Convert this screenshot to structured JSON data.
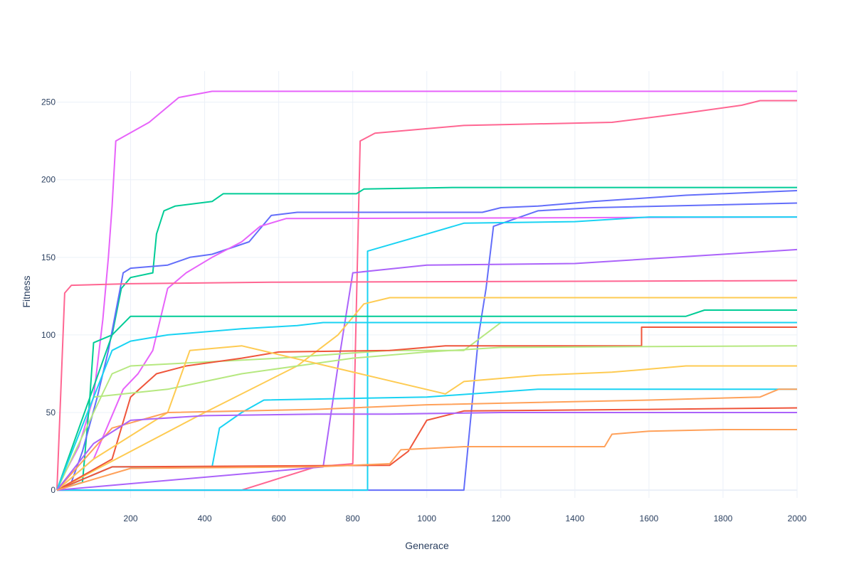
{
  "chart_data": {
    "type": "line",
    "title": "",
    "xlabel": "Generace",
    "ylabel": "Fitness",
    "xlim": [
      1,
      2000
    ],
    "ylim": [
      -5,
      270
    ],
    "xticks": [
      200,
      400,
      600,
      800,
      1000,
      1200,
      1400,
      1600,
      1800,
      2000
    ],
    "yticks": [
      0,
      50,
      100,
      150,
      200,
      250
    ],
    "grid": true,
    "legend": "none",
    "series": [
      {
        "color": "#e763fa",
        "points": [
          [
            1,
            0
          ],
          [
            20,
            10
          ],
          [
            60,
            28
          ],
          [
            100,
            60
          ],
          [
            125,
            110
          ],
          [
            140,
            150
          ],
          [
            150,
            183
          ],
          [
            160,
            225
          ],
          [
            250,
            237
          ],
          [
            330,
            253
          ],
          [
            420,
            257
          ],
          [
            2000,
            257
          ]
        ]
      },
      {
        "color": "#ff6692",
        "points": [
          [
            1,
            0
          ],
          [
            500,
            0
          ],
          [
            700,
            15
          ],
          [
            800,
            17
          ],
          [
            820,
            225
          ],
          [
            860,
            230
          ],
          [
            1100,
            235
          ],
          [
            1500,
            237
          ],
          [
            1700,
            243
          ],
          [
            1850,
            248
          ],
          [
            1900,
            251
          ],
          [
            2000,
            251
          ]
        ]
      },
      {
        "color": "#00cc96",
        "points": [
          [
            1,
            0
          ],
          [
            70,
            5
          ],
          [
            90,
            60
          ],
          [
            100,
            95
          ],
          [
            150,
            100
          ],
          [
            175,
            130
          ],
          [
            200,
            137
          ],
          [
            260,
            140
          ],
          [
            270,
            165
          ],
          [
            290,
            180
          ],
          [
            320,
            183
          ],
          [
            420,
            186
          ],
          [
            450,
            191
          ],
          [
            810,
            191
          ],
          [
            830,
            194
          ],
          [
            1070,
            195
          ],
          [
            2000,
            195
          ]
        ]
      },
      {
        "color": "#636efa",
        "points": [
          [
            1,
            0
          ],
          [
            40,
            5
          ],
          [
            70,
            25
          ],
          [
            110,
            60
          ],
          [
            140,
            90
          ],
          [
            180,
            140
          ],
          [
            200,
            143
          ],
          [
            300,
            145
          ],
          [
            360,
            150
          ],
          [
            420,
            152
          ],
          [
            520,
            160
          ],
          [
            580,
            177
          ],
          [
            650,
            179
          ],
          [
            1150,
            179
          ],
          [
            1200,
            182
          ],
          [
            1300,
            183
          ],
          [
            1450,
            186
          ],
          [
            1700,
            190
          ],
          [
            2000,
            193
          ]
        ]
      },
      {
        "color": "#636efa",
        "points": [
          [
            1,
            0
          ],
          [
            1100,
            0
          ],
          [
            1140,
            100
          ],
          [
            1160,
            130
          ],
          [
            1180,
            170
          ],
          [
            1300,
            180
          ],
          [
            1450,
            182
          ],
          [
            2000,
            185
          ]
        ]
      },
      {
        "color": "#e763fa",
        "points": [
          [
            1,
            0
          ],
          [
            100,
            20
          ],
          [
            180,
            65
          ],
          [
            220,
            75
          ],
          [
            260,
            90
          ],
          [
            300,
            130
          ],
          [
            350,
            140
          ],
          [
            420,
            150
          ],
          [
            500,
            160
          ],
          [
            550,
            170
          ],
          [
            620,
            175
          ],
          [
            2000,
            176
          ]
        ]
      },
      {
        "color": "#19d3f3",
        "points": [
          [
            1,
            0
          ],
          [
            840,
            0
          ],
          [
            840,
            154
          ],
          [
            1000,
            165
          ],
          [
            1100,
            172
          ],
          [
            1400,
            173
          ],
          [
            1600,
            176
          ],
          [
            2000,
            176
          ]
        ]
      },
      {
        "color": "#ab63fa",
        "points": [
          [
            1,
            0
          ],
          [
            720,
            15
          ],
          [
            760,
            80
          ],
          [
            800,
            140
          ],
          [
            1000,
            145
          ],
          [
            1400,
            146
          ],
          [
            1800,
            152
          ],
          [
            2000,
            155
          ]
        ]
      },
      {
        "color": "#ff6692",
        "points": [
          [
            1,
            0
          ],
          [
            22,
            127
          ],
          [
            40,
            132
          ],
          [
            200,
            133
          ],
          [
            600,
            134
          ],
          [
            2000,
            135
          ]
        ]
      },
      {
        "color": "#fecb52",
        "points": [
          [
            1,
            0
          ],
          [
            400,
            50
          ],
          [
            650,
            80
          ],
          [
            760,
            100
          ],
          [
            830,
            120
          ],
          [
            900,
            124
          ],
          [
            2000,
            124
          ]
        ]
      },
      {
        "color": "#00cc96",
        "points": [
          [
            1,
            0
          ],
          [
            150,
            100
          ],
          [
            200,
            112
          ],
          [
            1700,
            112
          ],
          [
            1750,
            116
          ],
          [
            2000,
            116
          ]
        ]
      },
      {
        "color": "#b6e880",
        "points": [
          [
            1,
            0
          ],
          [
            100,
            50
          ],
          [
            150,
            75
          ],
          [
            200,
            80
          ],
          [
            600,
            85
          ],
          [
            900,
            90
          ],
          [
            1100,
            90
          ],
          [
            1200,
            108
          ],
          [
            2000,
            108
          ]
        ]
      },
      {
        "color": "#ef553b",
        "points": [
          [
            1,
            0
          ],
          [
            150,
            20
          ],
          [
            200,
            60
          ],
          [
            270,
            75
          ],
          [
            350,
            80
          ],
          [
            500,
            85
          ],
          [
            600,
            89
          ],
          [
            900,
            90
          ],
          [
            1050,
            93
          ],
          [
            1580,
            93
          ],
          [
            1580,
            105
          ],
          [
            2000,
            105
          ]
        ]
      },
      {
        "color": "#b6e880",
        "points": [
          [
            1,
            0
          ],
          [
            100,
            60
          ],
          [
            300,
            65
          ],
          [
            500,
            75
          ],
          [
            800,
            85
          ],
          [
            1000,
            89
          ],
          [
            1200,
            92
          ],
          [
            2000,
            93
          ]
        ]
      },
      {
        "color": "#fecb52",
        "points": [
          [
            1,
            0
          ],
          [
            100,
            20
          ],
          [
            300,
            50
          ],
          [
            360,
            90
          ],
          [
            500,
            93
          ],
          [
            1050,
            62
          ],
          [
            1100,
            70
          ],
          [
            1300,
            74
          ],
          [
            1500,
            76
          ],
          [
            1700,
            80
          ],
          [
            2000,
            80
          ]
        ]
      },
      {
        "color": "#19d3f3",
        "points": [
          [
            1,
            0
          ],
          [
            150,
            90
          ],
          [
            200,
            96
          ],
          [
            300,
            100
          ],
          [
            500,
            104
          ],
          [
            650,
            106
          ],
          [
            720,
            108
          ],
          [
            2000,
            108
          ]
        ]
      },
      {
        "color": "#19d3f3",
        "points": [
          [
            1,
            0
          ],
          [
            150,
            15
          ],
          [
            420,
            15
          ],
          [
            440,
            40
          ],
          [
            500,
            50
          ],
          [
            560,
            58
          ],
          [
            1000,
            60
          ],
          [
            1300,
            65
          ],
          [
            2000,
            65
          ]
        ]
      },
      {
        "color": "#ffa15a",
        "points": [
          [
            1,
            0
          ],
          [
            150,
            40
          ],
          [
            300,
            50
          ],
          [
            700,
            52
          ],
          [
            1000,
            55
          ],
          [
            1600,
            58
          ],
          [
            1900,
            60
          ],
          [
            1950,
            65
          ],
          [
            2000,
            65
          ]
        ]
      },
      {
        "color": "#ef553b",
        "points": [
          [
            1,
            0
          ],
          [
            150,
            15
          ],
          [
            900,
            16
          ],
          [
            950,
            25
          ],
          [
            1000,
            45
          ],
          [
            1100,
            51
          ],
          [
            1600,
            52
          ],
          [
            2000,
            53
          ]
        ]
      },
      {
        "color": "#ab63fa",
        "points": [
          [
            1,
            0
          ],
          [
            100,
            30
          ],
          [
            200,
            45
          ],
          [
            400,
            48
          ],
          [
            700,
            49
          ],
          [
            900,
            49
          ],
          [
            1200,
            50
          ],
          [
            2000,
            50
          ]
        ]
      },
      {
        "color": "#ffa15a",
        "points": [
          [
            1,
            0
          ],
          [
            200,
            14
          ],
          [
            700,
            15
          ],
          [
            900,
            17
          ],
          [
            930,
            26
          ],
          [
            1100,
            28
          ],
          [
            1480,
            28
          ],
          [
            1500,
            36
          ],
          [
            1600,
            38
          ],
          [
            1800,
            39
          ],
          [
            2000,
            39
          ]
        ]
      }
    ]
  }
}
